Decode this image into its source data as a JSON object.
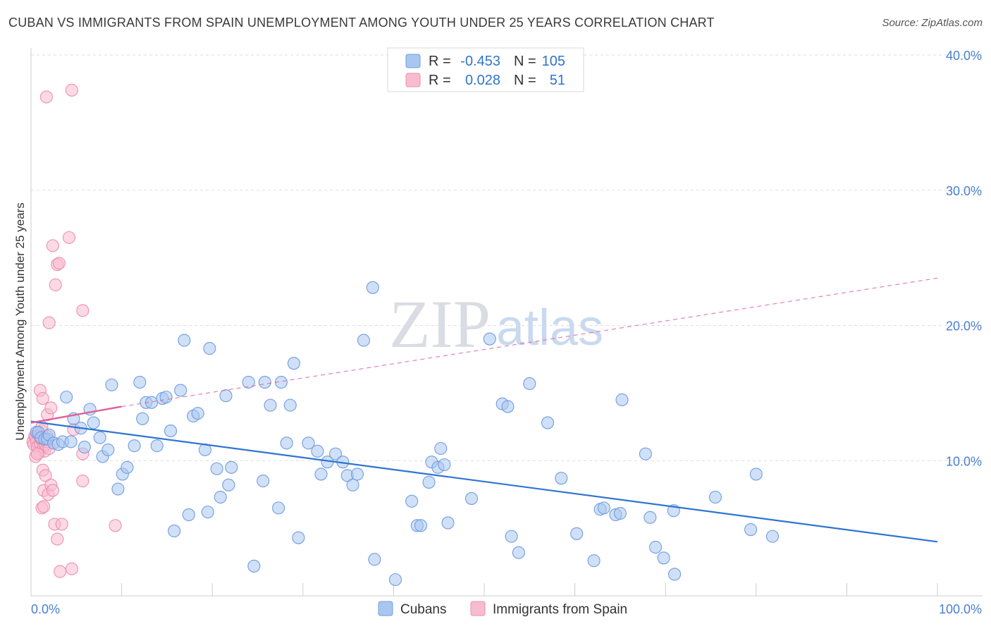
{
  "header": {
    "title": "CUBAN VS IMMIGRANTS FROM SPAIN UNEMPLOYMENT AMONG YOUTH UNDER 25 YEARS CORRELATION CHART",
    "source": "Source: ZipAtlas.com"
  },
  "watermark": {
    "zip": "ZIP",
    "atlas": "atlas"
  },
  "legend": {
    "rows": [
      {
        "r_label": "R =",
        "r_value": "-0.453",
        "n_label": "N =",
        "n_value": "105",
        "color": "#8fb4e8"
      },
      {
        "r_label": "R =",
        "r_value": "0.028",
        "n_label": "N =",
        "n_value": "51",
        "color": "#f5a9c2"
      }
    ]
  },
  "bottom_legend": {
    "cubans": "Cubans",
    "spain": "Immigrants from Spain"
  },
  "colors": {
    "blue_fill": "#a9c6f0",
    "blue_stroke": "#6f9ee0",
    "blue_line": "#2f74d0",
    "pink_fill": "#f7bcd0",
    "pink_stroke": "#ee8fb0",
    "pink_line": "#e0609a",
    "grid": "#dddddd",
    "tick_text": "#4a7fd1"
  },
  "chart_data": {
    "type": "scatter",
    "title": "CUBAN VS IMMIGRANTS FROM SPAIN UNEMPLOYMENT AMONG YOUTH UNDER 25 YEARS CORRELATION CHART",
    "xlabel": "",
    "ylabel": "Unemployment Among Youth under 25 years",
    "xlim": [
      0,
      100
    ],
    "ylim": [
      0,
      40
    ],
    "x_tick_labels": [
      "0.0%",
      "100.0%"
    ],
    "y_ticks": [
      10,
      20,
      30,
      40
    ],
    "y_tick_labels": [
      "10.0%",
      "20.0%",
      "30.0%",
      "40.0%"
    ],
    "series": [
      {
        "name": "Cubans",
        "r": -0.453,
        "n": 105,
        "trend": {
          "x": [
            0,
            100
          ],
          "y": [
            12.9,
            4.0
          ]
        },
        "points": [
          [
            0.6,
            12.1
          ],
          [
            0.8,
            12.1
          ],
          [
            1.1,
            11.7
          ],
          [
            1.5,
            11.6
          ],
          [
            1.8,
            11.6
          ],
          [
            2.0,
            11.9
          ],
          [
            2.5,
            11.3
          ],
          [
            3.0,
            11.2
          ],
          [
            3.5,
            11.4
          ],
          [
            3.9,
            14.7
          ],
          [
            4.4,
            11.4
          ],
          [
            4.7,
            13.1
          ],
          [
            5.5,
            12.4
          ],
          [
            5.9,
            11.0
          ],
          [
            6.5,
            13.8
          ],
          [
            6.9,
            12.8
          ],
          [
            7.6,
            11.7
          ],
          [
            7.9,
            10.3
          ],
          [
            8.5,
            10.8
          ],
          [
            8.9,
            15.6
          ],
          [
            9.6,
            7.9
          ],
          [
            10.1,
            9.0
          ],
          [
            10.6,
            9.5
          ],
          [
            11.4,
            11.1
          ],
          [
            12.0,
            15.8
          ],
          [
            12.3,
            13.1
          ],
          [
            12.7,
            14.3
          ],
          [
            13.3,
            14.3
          ],
          [
            13.9,
            11.1
          ],
          [
            14.5,
            14.6
          ],
          [
            14.9,
            14.7
          ],
          [
            15.4,
            12.2
          ],
          [
            15.8,
            4.8
          ],
          [
            16.5,
            15.2
          ],
          [
            16.9,
            18.9
          ],
          [
            17.4,
            6.0
          ],
          [
            17.9,
            13.3
          ],
          [
            18.4,
            13.5
          ],
          [
            19.2,
            10.8
          ],
          [
            19.5,
            6.2
          ],
          [
            19.7,
            18.3
          ],
          [
            20.5,
            9.4
          ],
          [
            20.9,
            7.3
          ],
          [
            21.5,
            14.8
          ],
          [
            21.8,
            8.2
          ],
          [
            22.1,
            9.5
          ],
          [
            24.0,
            15.8
          ],
          [
            24.6,
            2.2
          ],
          [
            25.6,
            8.5
          ],
          [
            25.8,
            15.8
          ],
          [
            26.4,
            14.1
          ],
          [
            27.3,
            6.5
          ],
          [
            27.6,
            15.8
          ],
          [
            28.2,
            11.3
          ],
          [
            28.6,
            14.1
          ],
          [
            29.0,
            17.2
          ],
          [
            29.5,
            4.3
          ],
          [
            30.6,
            11.3
          ],
          [
            31.6,
            10.7
          ],
          [
            32.0,
            9.0
          ],
          [
            32.7,
            9.9
          ],
          [
            33.6,
            10.5
          ],
          [
            34.4,
            9.9
          ],
          [
            34.9,
            8.9
          ],
          [
            35.5,
            8.2
          ],
          [
            36.0,
            9.0
          ],
          [
            36.7,
            18.9
          ],
          [
            37.7,
            22.8
          ],
          [
            37.9,
            2.7
          ],
          [
            40.2,
            1.2
          ],
          [
            42.0,
            7.0
          ],
          [
            42.6,
            5.2
          ],
          [
            43.0,
            5.2
          ],
          [
            43.9,
            8.4
          ],
          [
            44.2,
            9.9
          ],
          [
            44.9,
            9.5
          ],
          [
            45.2,
            10.9
          ],
          [
            45.6,
            9.7
          ],
          [
            46.0,
            5.4
          ],
          [
            48.6,
            7.2
          ],
          [
            50.6,
            19.0
          ],
          [
            52.0,
            14.2
          ],
          [
            52.6,
            14.0
          ],
          [
            53.0,
            4.4
          ],
          [
            53.8,
            3.2
          ],
          [
            55.0,
            15.7
          ],
          [
            57.0,
            12.8
          ],
          [
            58.5,
            8.7
          ],
          [
            60.2,
            4.6
          ],
          [
            62.1,
            2.6
          ],
          [
            62.8,
            6.4
          ],
          [
            63.2,
            6.5
          ],
          [
            64.5,
            6.0
          ],
          [
            65.0,
            6.1
          ],
          [
            65.2,
            14.5
          ],
          [
            67.8,
            10.5
          ],
          [
            68.3,
            5.8
          ],
          [
            68.9,
            3.6
          ],
          [
            69.8,
            2.8
          ],
          [
            70.9,
            6.3
          ],
          [
            71.0,
            1.6
          ],
          [
            75.5,
            7.3
          ],
          [
            79.4,
            4.9
          ],
          [
            80.0,
            9.0
          ],
          [
            81.8,
            4.4
          ]
        ]
      },
      {
        "name": "Immigrants from Spain",
        "r": 0.028,
        "n": 51,
        "trend": {
          "solid": {
            "x": [
              0,
              10
            ],
            "y": [
              12.8,
              14.0
            ]
          },
          "dashed": {
            "x": [
              10,
              100
            ],
            "y": [
              14.0,
              23.5
            ]
          }
        },
        "points": [
          [
            0.2,
            11.4
          ],
          [
            0.3,
            11.2
          ],
          [
            0.4,
            11.8
          ],
          [
            0.5,
            11.7
          ],
          [
            0.6,
            11.4
          ],
          [
            0.7,
            11.0
          ],
          [
            0.8,
            11.9
          ],
          [
            0.9,
            10.6
          ],
          [
            1.0,
            11.3
          ],
          [
            1.1,
            11.6
          ],
          [
            1.2,
            12.2
          ],
          [
            1.3,
            11.5
          ],
          [
            1.4,
            11.0
          ],
          [
            1.5,
            10.7
          ],
          [
            1.6,
            11.2
          ],
          [
            1.7,
            11.4
          ],
          [
            1.8,
            11.8
          ],
          [
            2.0,
            10.9
          ],
          [
            0.5,
            10.3
          ],
          [
            0.7,
            10.5
          ],
          [
            1.2,
            12.5
          ],
          [
            1.0,
            15.2
          ],
          [
            1.3,
            14.6
          ],
          [
            1.8,
            13.4
          ],
          [
            2.2,
            13.9
          ],
          [
            1.3,
            9.3
          ],
          [
            1.6,
            8.9
          ],
          [
            1.4,
            7.8
          ],
          [
            1.9,
            7.5
          ],
          [
            2.2,
            8.2
          ],
          [
            2.4,
            7.8
          ],
          [
            1.2,
            6.5
          ],
          [
            1.4,
            6.6
          ],
          [
            2.6,
            5.3
          ],
          [
            3.4,
            5.3
          ],
          [
            2.9,
            4.2
          ],
          [
            3.2,
            1.8
          ],
          [
            4.5,
            2.0
          ],
          [
            1.7,
            36.9
          ],
          [
            4.5,
            37.4
          ],
          [
            2.4,
            25.9
          ],
          [
            2.9,
            24.5
          ],
          [
            3.1,
            24.6
          ],
          [
            4.2,
            26.5
          ],
          [
            2.7,
            23.0
          ],
          [
            5.7,
            21.1
          ],
          [
            2.0,
            20.2
          ],
          [
            9.3,
            5.2
          ],
          [
            5.7,
            10.5
          ],
          [
            5.7,
            8.5
          ],
          [
            4.7,
            12.3
          ]
        ]
      }
    ]
  }
}
